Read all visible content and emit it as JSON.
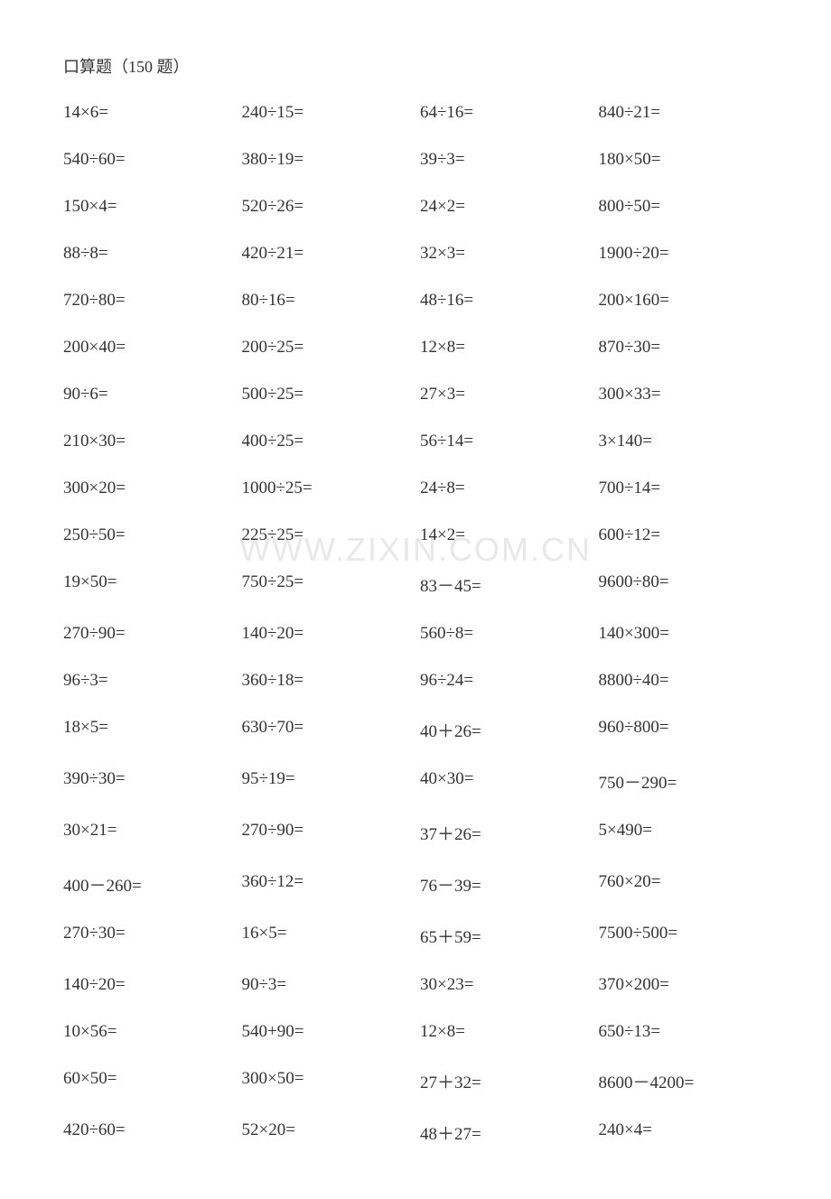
{
  "title": "口算题（150 题）",
  "watermark": "WWW.ZIXIN.COM.CN",
  "colors": {
    "background": "#ffffff",
    "text": "#333333",
    "watermark": "#e8e8e8"
  },
  "typography": {
    "title_fontsize": 18,
    "problem_fontsize": 19,
    "watermark_fontsize": 36
  },
  "layout": {
    "columns": 4,
    "rows": 22,
    "row_gap": 30
  },
  "problems": [
    [
      "14×6=",
      "240÷15=",
      "64÷16=",
      "840÷21="
    ],
    [
      "540÷60=",
      "380÷19=",
      "39÷3=",
      "180×50="
    ],
    [
      "150×4=",
      "520÷26=",
      "24×2=",
      "800÷50="
    ],
    [
      "88÷8=",
      "420÷21=",
      "32×3=",
      "1900÷20="
    ],
    [
      "720÷80=",
      "80÷16=",
      "48÷16=",
      "200×160="
    ],
    [
      "200×40=",
      "200÷25=",
      "12×8=",
      "870÷30="
    ],
    [
      "90÷6=",
      "500÷25=",
      "27×3=",
      "300×33="
    ],
    [
      "210×30=",
      "400÷25=",
      "56÷14=",
      "3×140="
    ],
    [
      "300×20=",
      "1000÷25=",
      "24÷8=",
      "700÷14="
    ],
    [
      "250÷50=",
      "225÷25=",
      "14×2=",
      "600÷12="
    ],
    [
      "19×50=",
      "750÷25=",
      "83－45=",
      "9600÷80="
    ],
    [
      "270÷90=",
      "140÷20=",
      "560÷8=",
      "140×300="
    ],
    [
      "96÷3=",
      "360÷18=",
      "96÷24=",
      "8800÷40="
    ],
    [
      "18×5=",
      "630÷70=",
      "40＋26=",
      "960÷800="
    ],
    [
      "390÷30=",
      "95÷19=",
      "40×30=",
      "750－290="
    ],
    [
      "30×21=",
      "270÷90=",
      "37＋26=",
      "5×490="
    ],
    [
      "400－260=",
      "360÷12=",
      "76－39=",
      "760×20="
    ],
    [
      "270÷30=",
      "16×5=",
      "65＋59=",
      "7500÷500="
    ],
    [
      "140÷20=",
      "90÷3=",
      "30×23=",
      "370×200="
    ],
    [
      "10×56=",
      "540+90=",
      "12×8=",
      "650÷13="
    ],
    [
      "60×50=",
      "300×50=",
      "27＋32=",
      "8600－4200="
    ],
    [
      "420÷60=",
      "52×20=",
      "48＋27=",
      "240×4="
    ]
  ]
}
